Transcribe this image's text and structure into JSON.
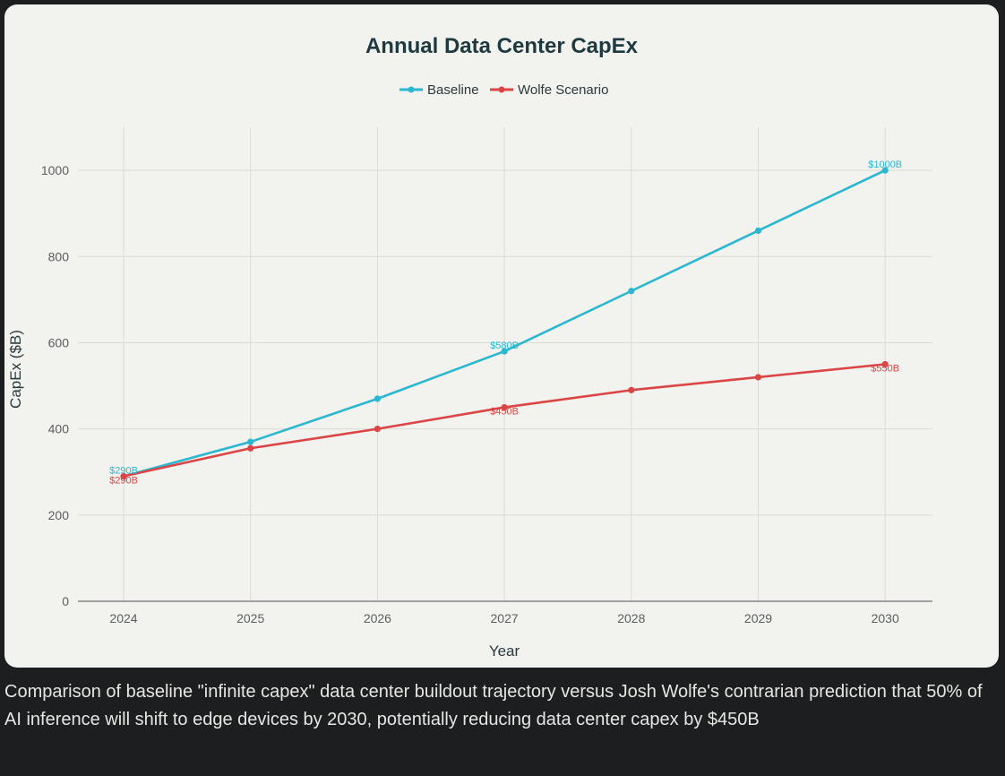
{
  "caption": "Comparison of baseline \"infinite capex\" data center buildout trajectory versus Josh Wolfe's contrarian prediction that 50% of AI inference will shift to edge devices by 2030, potentially reducing data center capex by $450B",
  "chart_data": {
    "type": "line",
    "title": "Annual Data Center CapEx",
    "xlabel": "Year",
    "ylabel": "CapEx ($B)",
    "categories": [
      "2024",
      "2025",
      "2026",
      "2027",
      "2028",
      "2029",
      "2030"
    ],
    "ylim": [
      0,
      1100
    ],
    "yticks": [
      0,
      200,
      400,
      600,
      800,
      1000
    ],
    "grid": true,
    "legend_position": "top-center",
    "series": [
      {
        "name": "Baseline",
        "color": "#2ab7cf",
        "values": [
          290,
          370,
          470,
          580,
          720,
          860,
          1000
        ],
        "labels": [
          {
            "index": 0,
            "text": "$290B"
          },
          {
            "index": 3,
            "text": "$580B"
          },
          {
            "index": 6,
            "text": "$1000B"
          }
        ]
      },
      {
        "name": "Wolfe Scenario",
        "color": "#dc4545",
        "values": [
          290,
          355,
          400,
          450,
          490,
          520,
          550
        ],
        "labels": [
          {
            "index": 0,
            "text": "$290B"
          },
          {
            "index": 3,
            "text": "$450B"
          },
          {
            "index": 6,
            "text": "$550B"
          }
        ]
      }
    ]
  }
}
